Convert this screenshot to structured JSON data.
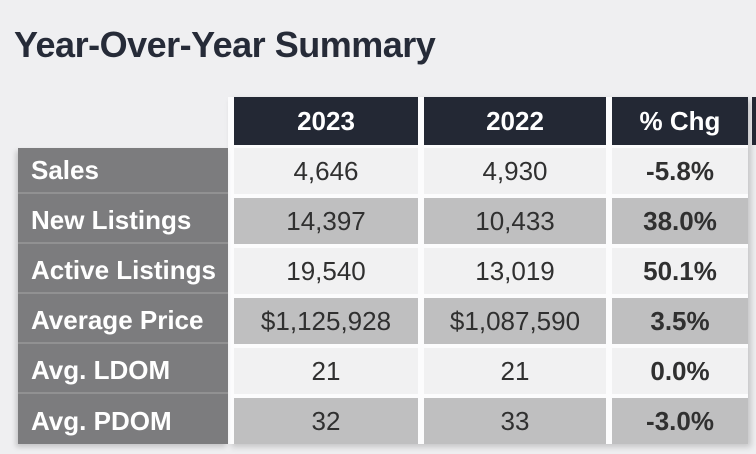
{
  "page": {
    "background": "#efeff1"
  },
  "chart_data": {
    "type": "table",
    "title": "Year-Over-Year Summary",
    "columns": [
      "2023",
      "2022",
      "% Chg"
    ],
    "rows": [
      {
        "label": "Sales",
        "y2023": "4,646",
        "y2022": "4,930",
        "chg": "-5.8%"
      },
      {
        "label": "New Listings",
        "y2023": "14,397",
        "y2022": "10,433",
        "chg": "38.0%"
      },
      {
        "label": "Active Listings",
        "y2023": "19,540",
        "y2022": "13,019",
        "chg": "50.1%"
      },
      {
        "label": "Average Price",
        "y2023": "$1,125,928",
        "y2022": "$1,087,590",
        "chg": "3.5%"
      },
      {
        "label": "Avg. LDOM",
        "y2023": "21",
        "y2022": "21",
        "chg": "0.0%"
      },
      {
        "label": "Avg. PDOM",
        "y2023": "32",
        "y2022": "33",
        "chg": "-3.0%"
      }
    ],
    "values_2023": [
      4646,
      14397,
      19540,
      1125928,
      21,
      32
    ],
    "values_2022": [
      4930,
      10433,
      13019,
      1087590,
      21,
      33
    ],
    "pct_change": [
      -5.8,
      38.0,
      50.1,
      3.5,
      0.0,
      -3.0
    ]
  },
  "colors": {
    "title_text": "#262b38",
    "header_bg": "#232834",
    "header_text": "#ffffff",
    "label_column_bg": "#7c7c7e",
    "label_text": "#ffffff",
    "row_light": "#f1f1f2",
    "row_dark": "#bfbfc0",
    "value_text": "#303030"
  }
}
